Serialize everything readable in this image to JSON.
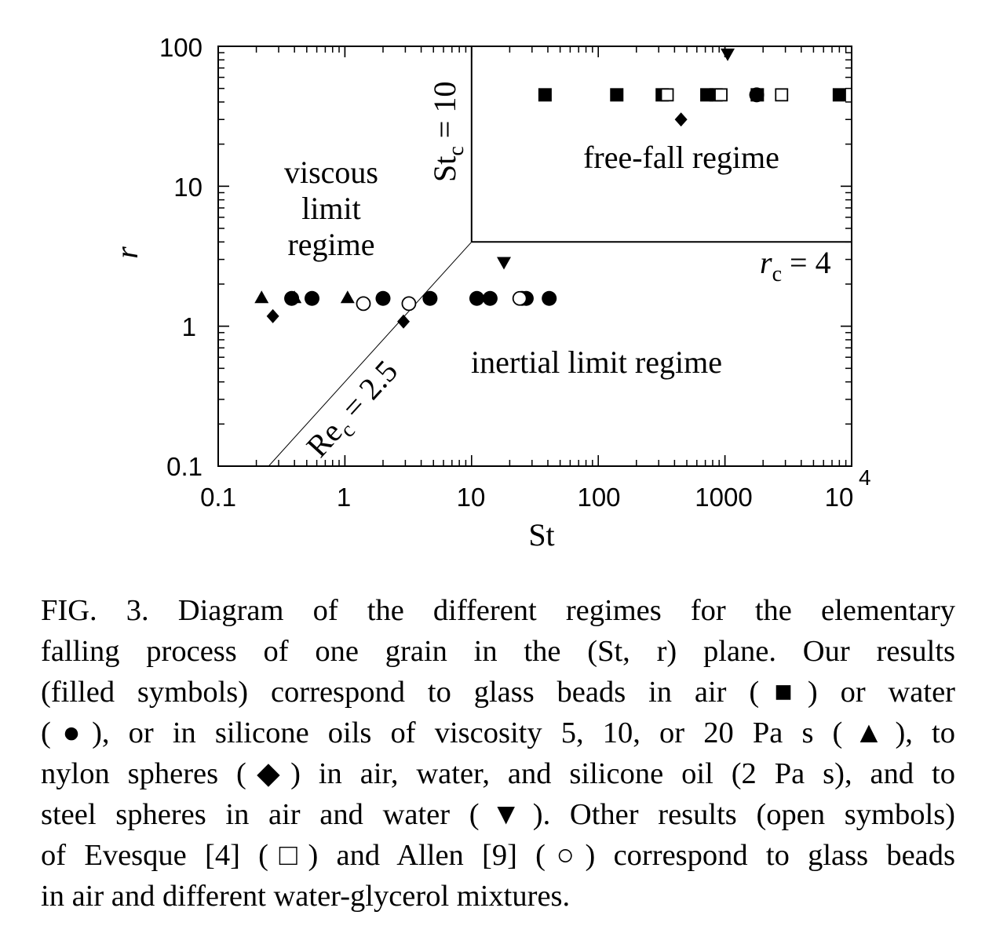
{
  "chart_data": {
    "type": "scatter",
    "xlabel": "St",
    "ylabel": "r",
    "xscale": "log",
    "yscale": "log",
    "xlim": [
      0.1,
      10000
    ],
    "ylim": [
      0.1,
      100
    ],
    "x_ticks": [
      "0.1",
      "1",
      "10",
      "100",
      "1000",
      "10"
    ],
    "x_tick_exponent": "4",
    "y_ticks": [
      "100",
      "10",
      "1",
      "0.1"
    ],
    "regions": {
      "viscous": [
        "viscous",
        "limit",
        "regime"
      ],
      "inertial": "inertial limit regime",
      "freefall": "free-fall regime"
    },
    "boundaries": {
      "stc": {
        "base": "St",
        "sub": "c",
        "rest": " = 10",
        "value": 10
      },
      "rc": {
        "base": "r",
        "sub": "c",
        "rest": " = 4",
        "value": 4
      },
      "rec": {
        "base": "Re",
        "sub": "c",
        "rest": " = 2.5",
        "value": 2.5
      }
    },
    "series": [
      {
        "marker": "filled-square",
        "points": [
          [
            38,
            45
          ],
          [
            140,
            45
          ],
          [
            320,
            45
          ],
          [
            720,
            45
          ],
          [
            850,
            45
          ],
          [
            1800,
            45
          ],
          [
            8000,
            45
          ]
        ]
      },
      {
        "marker": "filled-circle",
        "points": [
          [
            0.38,
            1.58
          ],
          [
            0.55,
            1.58
          ],
          [
            2.0,
            1.58
          ],
          [
            4.7,
            1.58
          ],
          [
            11,
            1.58
          ],
          [
            14,
            1.58
          ],
          [
            25,
            1.58
          ],
          [
            27,
            1.58
          ],
          [
            41,
            1.58
          ],
          [
            1780,
            45
          ]
        ]
      },
      {
        "marker": "filled-triangle-up",
        "points": [
          [
            0.22,
            1.6
          ],
          [
            0.4,
            1.6
          ],
          [
            1.05,
            1.6
          ]
        ]
      },
      {
        "marker": "filled-diamond",
        "points": [
          [
            0.27,
            1.18
          ],
          [
            2.9,
            1.08
          ],
          [
            450,
            30
          ]
        ]
      },
      {
        "marker": "filled-triangle-down",
        "points": [
          [
            18,
            2.85
          ],
          [
            1050,
            88
          ]
        ]
      },
      {
        "marker": "open-square",
        "points": [
          [
            350,
            45
          ],
          [
            930,
            45
          ],
          [
            2800,
            45
          ]
        ]
      },
      {
        "marker": "open-circle",
        "points": [
          [
            1.4,
            1.45
          ],
          [
            3.2,
            1.45
          ],
          [
            24,
            1.58
          ]
        ]
      }
    ]
  },
  "caption": {
    "lines": [
      "FIG. 3.    Diagram of the different regimes for the elementary",
      "falling process of one grain in the (St, r) plane. Our results",
      "(filled symbols) correspond to glass beads in air (■) or water",
      "(●), or in silicone oils of viscosity 5, 10, or 20 Pa s (▲), to",
      "nylon spheres (◆) in air, water, and silicone oil (2 Pa s), and to",
      "steel spheres in air and water (▼). Other results (open symbols)",
      "of Evesque [4] (□) and Allen [9] (○) correspond to glass beads",
      "in air and different water-glycerol mixtures."
    ]
  }
}
